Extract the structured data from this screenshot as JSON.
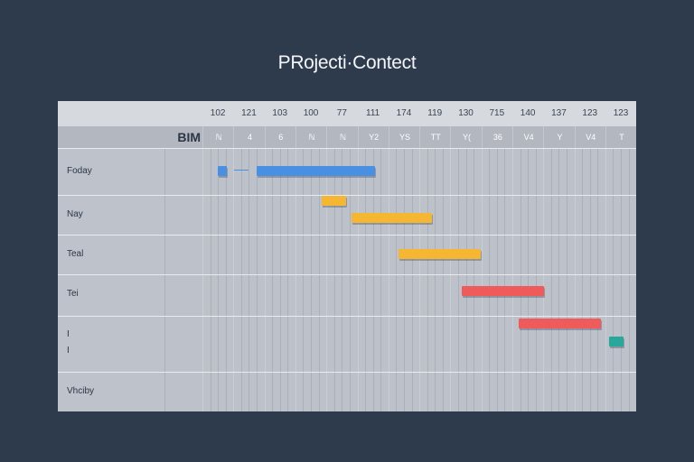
{
  "title": "PRojecti·Contect",
  "header": {
    "corner_label": "BIM",
    "columns": [
      {
        "num": "102",
        "sub": "ℕ"
      },
      {
        "num": "121",
        "sub": "4"
      },
      {
        "num": "103",
        "sub": "6"
      },
      {
        "num": "100",
        "sub": "ℕ"
      },
      {
        "num": "77",
        "sub": "ℕ"
      },
      {
        "num": "111",
        "sub": "Y2"
      },
      {
        "num": "174",
        "sub": "YS"
      },
      {
        "num": "119",
        "sub": "ΤΤ"
      },
      {
        "num": "130",
        "sub": "Y("
      },
      {
        "num": "715",
        "sub": "36"
      },
      {
        "num": "140",
        "sub": "V4"
      },
      {
        "num": "137",
        "sub": "Υ"
      },
      {
        "num": "123",
        "sub": "V4"
      },
      {
        "num": "123",
        "sub": "Τ"
      }
    ]
  },
  "rows": [
    {
      "label": "Foday"
    },
    {
      "label": "Nay"
    },
    {
      "label": "Teal"
    },
    {
      "label": "Tei"
    },
    {
      "label": "I\nI"
    },
    {
      "label": "Vhciby"
    }
  ],
  "colors": {
    "blue": "#4a90e2",
    "yellow": "#f5b731",
    "red": "#ef5a5a",
    "teal": "#27a89a"
  },
  "bars": [
    {
      "name": "blue-milestone",
      "color": "#4a90e2"
    },
    {
      "name": "blue-task",
      "color": "#4a90e2"
    },
    {
      "name": "yellow-small",
      "color": "#f5b731"
    },
    {
      "name": "yellow-task-1",
      "color": "#f5b731"
    },
    {
      "name": "yellow-task-2",
      "color": "#f5b731"
    },
    {
      "name": "red-task-1",
      "color": "#ef5a5a"
    },
    {
      "name": "red-task-2",
      "color": "#ef5a5a"
    },
    {
      "name": "teal-milestone",
      "color": "#27a89a"
    }
  ]
}
